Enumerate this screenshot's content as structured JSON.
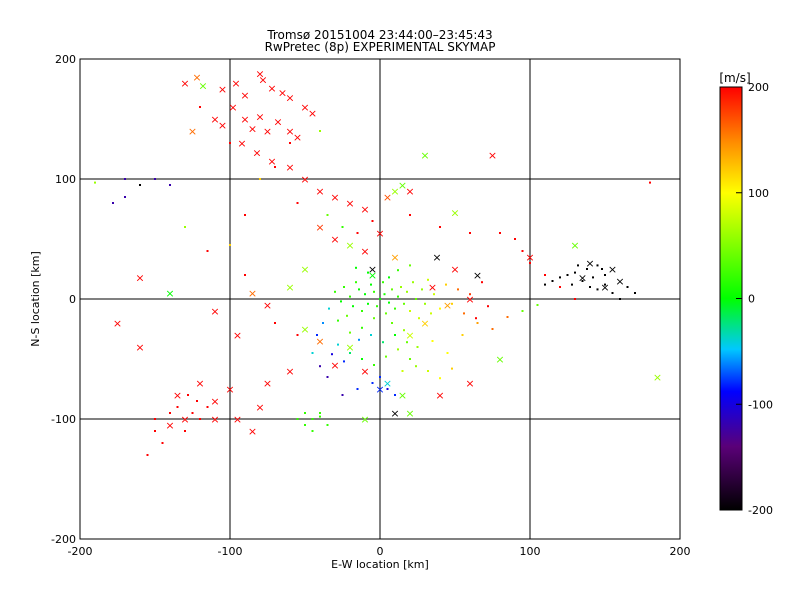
{
  "chart_data": {
    "type": "scatter",
    "title": "Tromsø 20151004 23:44:00–23:45:43",
    "subtitle": "RwPretec (8p) EXPERIMENTAL SKYMAP",
    "xlabel": "E-W location [km]",
    "ylabel": "N-S location [km]",
    "xlim": [
      -200,
      200
    ],
    "ylim": [
      -200,
      200
    ],
    "xticks": [
      "-200",
      "-100",
      "0",
      "100",
      "200"
    ],
    "yticks": [
      "-200",
      "-100",
      "0",
      "100",
      "200"
    ],
    "gridlines_x": [
      -100,
      0,
      100
    ],
    "gridlines_y": [
      -100,
      0,
      100
    ],
    "colorbar": {
      "label": "[m/s]",
      "min": -200,
      "max": 200,
      "ticks": [
        "-200",
        "-100",
        "0",
        "100",
        "200"
      ],
      "colors": [
        "#000000",
        "#5a0078",
        "#0000ff",
        "#00c8ff",
        "#00ff00",
        "#ffff00",
        "#ff8c00",
        "#ff0000"
      ]
    },
    "markers": {
      "cross": "×",
      "dot": "·"
    },
    "crosses": [
      [
        -130,
        180,
        200
      ],
      [
        -122,
        185,
        160
      ],
      [
        -118,
        178,
        40
      ],
      [
        -105,
        175,
        200
      ],
      [
        -96,
        180,
        200
      ],
      [
        -90,
        170,
        200
      ],
      [
        -80,
        188,
        200
      ],
      [
        -78,
        183,
        200
      ],
      [
        -72,
        176,
        200
      ],
      [
        -65,
        172,
        200
      ],
      [
        -60,
        168,
        200
      ],
      [
        -50,
        160,
        200
      ],
      [
        -45,
        155,
        200
      ],
      [
        -125,
        140,
        160
      ],
      [
        -110,
        150,
        200
      ],
      [
        -105,
        145,
        200
      ],
      [
        -98,
        160,
        200
      ],
      [
        -90,
        150,
        200
      ],
      [
        -85,
        142,
        200
      ],
      [
        -80,
        152,
        200
      ],
      [
        -75,
        140,
        200
      ],
      [
        -68,
        148,
        200
      ],
      [
        -60,
        140,
        200
      ],
      [
        -55,
        135,
        200
      ],
      [
        -92,
        130,
        200
      ],
      [
        -82,
        122,
        200
      ],
      [
        -72,
        115,
        200
      ],
      [
        -60,
        110,
        200
      ],
      [
        -50,
        100,
        200
      ],
      [
        -40,
        90,
        200
      ],
      [
        -30,
        85,
        200
      ],
      [
        -20,
        80,
        200
      ],
      [
        -10,
        75,
        200
      ],
      [
        5,
        85,
        170
      ],
      [
        10,
        90,
        60
      ],
      [
        15,
        95,
        40
      ],
      [
        20,
        90,
        200
      ],
      [
        30,
        120,
        40
      ],
      [
        75,
        120,
        200
      ],
      [
        50,
        72,
        60
      ],
      [
        -40,
        60,
        180
      ],
      [
        -30,
        50,
        200
      ],
      [
        -20,
        45,
        60
      ],
      [
        -10,
        40,
        200
      ],
      [
        0,
        55,
        200
      ],
      [
        10,
        35,
        140
      ],
      [
        -50,
        25,
        60
      ],
      [
        -60,
        10,
        60
      ],
      [
        -85,
        5,
        160
      ],
      [
        -160,
        18,
        200
      ],
      [
        -175,
        -20,
        200
      ],
      [
        -160,
        -40,
        200
      ],
      [
        -140,
        5,
        0
      ],
      [
        -110,
        -10,
        200
      ],
      [
        -95,
        -30,
        200
      ],
      [
        -75,
        -5,
        200
      ],
      [
        -50,
        -25,
        60
      ],
      [
        -40,
        -35,
        160
      ],
      [
        -30,
        -55,
        200
      ],
      [
        -20,
        -40,
        60
      ],
      [
        -10,
        -60,
        200
      ],
      [
        5,
        -70,
        -40
      ],
      [
        15,
        -80,
        40
      ],
      [
        20,
        -95,
        40
      ],
      [
        -10,
        -100,
        40
      ],
      [
        10,
        -95,
        -200
      ],
      [
        40,
        -80,
        200
      ],
      [
        60,
        -70,
        200
      ],
      [
        80,
        -50,
        40
      ],
      [
        185,
        -65,
        60
      ],
      [
        -135,
        -80,
        200
      ],
      [
        -120,
        -70,
        200
      ],
      [
        -110,
        -85,
        200
      ],
      [
        -100,
        -75,
        200
      ],
      [
        -95,
        -100,
        200
      ],
      [
        -85,
        -110,
        200
      ],
      [
        -130,
        -100,
        200
      ],
      [
        -140,
        -105,
        200
      ],
      [
        130,
        45,
        40
      ],
      [
        140,
        30,
        -200
      ],
      [
        155,
        25,
        -200
      ],
      [
        160,
        15,
        -200
      ],
      [
        150,
        10,
        -200
      ],
      [
        135,
        18,
        -200
      ],
      [
        65,
        20,
        -200
      ],
      [
        38,
        35,
        -200
      ],
      [
        -5,
        25,
        -200
      ],
      [
        35,
        10,
        200
      ],
      [
        50,
        25,
        200
      ],
      [
        100,
        35,
        200
      ],
      [
        -110,
        -100,
        200
      ],
      [
        -80,
        -90,
        200
      ],
      [
        -75,
        -70,
        200
      ],
      [
        -60,
        -60,
        200
      ],
      [
        0,
        -75,
        -80
      ],
      [
        60,
        0,
        200
      ],
      [
        45,
        -5,
        140
      ],
      [
        30,
        -20,
        120
      ],
      [
        20,
        -30,
        80
      ],
      [
        -5,
        20,
        0
      ]
    ],
    "dots": [
      [
        -178,
        80,
        -120
      ],
      [
        -170,
        100,
        -120
      ],
      [
        -150,
        100,
        -120
      ],
      [
        -140,
        95,
        -120
      ],
      [
        -160,
        95,
        -200
      ],
      [
        -170,
        85,
        -120
      ],
      [
        -100,
        45,
        120
      ],
      [
        -90,
        70,
        200
      ],
      [
        -70,
        110,
        200
      ],
      [
        -60,
        130,
        200
      ],
      [
        -40,
        140,
        60
      ],
      [
        -120,
        160,
        200
      ],
      [
        -100,
        130,
        200
      ],
      [
        -80,
        100,
        120
      ],
      [
        -55,
        80,
        200
      ],
      [
        -35,
        70,
        40
      ],
      [
        -25,
        60,
        20
      ],
      [
        -15,
        55,
        200
      ],
      [
        -5,
        65,
        200
      ],
      [
        20,
        70,
        200
      ],
      [
        40,
        60,
        200
      ],
      [
        60,
        55,
        200
      ],
      [
        80,
        55,
        200
      ],
      [
        90,
        50,
        200
      ],
      [
        95,
        40,
        200
      ],
      [
        100,
        30,
        200
      ],
      [
        110,
        20,
        200
      ],
      [
        120,
        10,
        200
      ],
      [
        130,
        0,
        200
      ],
      [
        180,
        97,
        200
      ],
      [
        -190,
        97,
        60
      ],
      [
        -130,
        60,
        60
      ],
      [
        -115,
        40,
        200
      ],
      [
        -90,
        20,
        200
      ],
      [
        -70,
        -20,
        200
      ],
      [
        -55,
        -30,
        200
      ],
      [
        -45,
        -45,
        -40
      ],
      [
        -35,
        -65,
        -120
      ],
      [
        -25,
        -80,
        -120
      ],
      [
        -15,
        -75,
        -80
      ],
      [
        -5,
        -70,
        -80
      ],
      [
        0,
        -65,
        -80
      ],
      [
        5,
        -75,
        -100
      ],
      [
        10,
        -80,
        -80
      ],
      [
        15,
        -60,
        80
      ],
      [
        20,
        -50,
        40
      ],
      [
        25,
        -40,
        60
      ],
      [
        35,
        -35,
        100
      ],
      [
        45,
        -45,
        100
      ],
      [
        55,
        -30,
        120
      ],
      [
        65,
        -20,
        140
      ],
      [
        75,
        -25,
        160
      ],
      [
        85,
        -15,
        160
      ],
      [
        95,
        -10,
        40
      ],
      [
        105,
        -5,
        40
      ],
      [
        -50,
        -95,
        20
      ],
      [
        -45,
        -100,
        20
      ],
      [
        -40,
        -95,
        20
      ],
      [
        -35,
        -105,
        20
      ],
      [
        -50,
        -105,
        20
      ],
      [
        -45,
        -110,
        20
      ],
      [
        -40,
        -98,
        20
      ],
      [
        -55,
        -100,
        20
      ],
      [
        -150,
        -110,
        200
      ],
      [
        -145,
        -120,
        200
      ],
      [
        -140,
        -95,
        200
      ],
      [
        -135,
        -90,
        200
      ],
      [
        -130,
        -110,
        200
      ],
      [
        -125,
        -95,
        200
      ],
      [
        -120,
        -100,
        200
      ],
      [
        -115,
        -90,
        200
      ],
      [
        -155,
        -130,
        200
      ],
      [
        -150,
        -100,
        200
      ],
      [
        -128,
        -80,
        200
      ],
      [
        -122,
        -85,
        200
      ],
      [
        110,
        12,
        -200
      ],
      [
        115,
        15,
        -200
      ],
      [
        120,
        18,
        -200
      ],
      [
        125,
        20,
        -200
      ],
      [
        130,
        22,
        -200
      ],
      [
        135,
        15,
        -200
      ],
      [
        140,
        10,
        -200
      ],
      [
        145,
        8,
        -200
      ],
      [
        150,
        12,
        -200
      ],
      [
        155,
        5,
        -200
      ],
      [
        160,
        0,
        -200
      ],
      [
        165,
        10,
        -200
      ],
      [
        170,
        5,
        -200
      ],
      [
        138,
        25,
        -200
      ],
      [
        145,
        28,
        -200
      ],
      [
        150,
        20,
        -200
      ],
      [
        128,
        12,
        -200
      ],
      [
        132,
        28,
        -200
      ],
      [
        142,
        18,
        -200
      ],
      [
        148,
        25,
        -200
      ],
      [
        0,
        0,
        0
      ],
      [
        3,
        4,
        10
      ],
      [
        -4,
        6,
        20
      ],
      [
        6,
        -3,
        0
      ],
      [
        -2,
        -6,
        20
      ],
      [
        8,
        8,
        40
      ],
      [
        -8,
        -4,
        0
      ],
      [
        12,
        2,
        20
      ],
      [
        -6,
        12,
        0
      ],
      [
        4,
        -12,
        40
      ],
      [
        10,
        -8,
        20
      ],
      [
        -10,
        4,
        0
      ],
      [
        14,
        10,
        60
      ],
      [
        -12,
        -10,
        20
      ],
      [
        16,
        -4,
        40
      ],
      [
        -14,
        8,
        0
      ],
      [
        2,
        14,
        20
      ],
      [
        6,
        18,
        0
      ],
      [
        -4,
        -16,
        40
      ],
      [
        18,
        6,
        60
      ],
      [
        20,
        -10,
        80
      ],
      [
        -16,
        14,
        20
      ],
      [
        22,
        14,
        60
      ],
      [
        -18,
        -6,
        0
      ],
      [
        24,
        0,
        40
      ],
      [
        -20,
        2,
        20
      ],
      [
        26,
        -16,
        80
      ],
      [
        -22,
        -14,
        40
      ],
      [
        28,
        8,
        60
      ],
      [
        -24,
        10,
        20
      ],
      [
        30,
        -4,
        60
      ],
      [
        -26,
        -2,
        0
      ],
      [
        32,
        16,
        80
      ],
      [
        -28,
        -18,
        20
      ],
      [
        34,
        -12,
        80
      ],
      [
        -30,
        6,
        20
      ],
      [
        8,
        -20,
        40
      ],
      [
        -8,
        22,
        0
      ],
      [
        12,
        24,
        20
      ],
      [
        -12,
        -24,
        20
      ],
      [
        16,
        -26,
        60
      ],
      [
        -16,
        26,
        0
      ],
      [
        20,
        28,
        40
      ],
      [
        -20,
        -28,
        40
      ],
      [
        36,
        4,
        80
      ],
      [
        40,
        -8,
        100
      ],
      [
        44,
        12,
        120
      ],
      [
        48,
        -4,
        120
      ],
      [
        52,
        8,
        160
      ],
      [
        56,
        -12,
        160
      ],
      [
        60,
        4,
        180
      ],
      [
        64,
        -16,
        200
      ],
      [
        68,
        14,
        200
      ],
      [
        72,
        -6,
        200
      ],
      [
        -34,
        -8,
        -40
      ],
      [
        -38,
        -20,
        -60
      ],
      [
        -42,
        -30,
        -80
      ],
      [
        -28,
        -38,
        -40
      ],
      [
        -20,
        -45,
        -20
      ],
      [
        -12,
        -50,
        0
      ],
      [
        -4,
        -55,
        20
      ],
      [
        4,
        -48,
        40
      ],
      [
        12,
        -42,
        60
      ],
      [
        -6,
        -30,
        -40
      ],
      [
        -14,
        -34,
        -60
      ],
      [
        2,
        -36,
        -20
      ],
      [
        10,
        -30,
        0
      ],
      [
        18,
        -36,
        40
      ],
      [
        -24,
        -52,
        -80
      ],
      [
        -32,
        -46,
        -100
      ],
      [
        -40,
        -56,
        -120
      ],
      [
        24,
        -56,
        60
      ],
      [
        32,
        -60,
        80
      ],
      [
        40,
        -66,
        100
      ],
      [
        48,
        -58,
        120
      ]
    ]
  }
}
